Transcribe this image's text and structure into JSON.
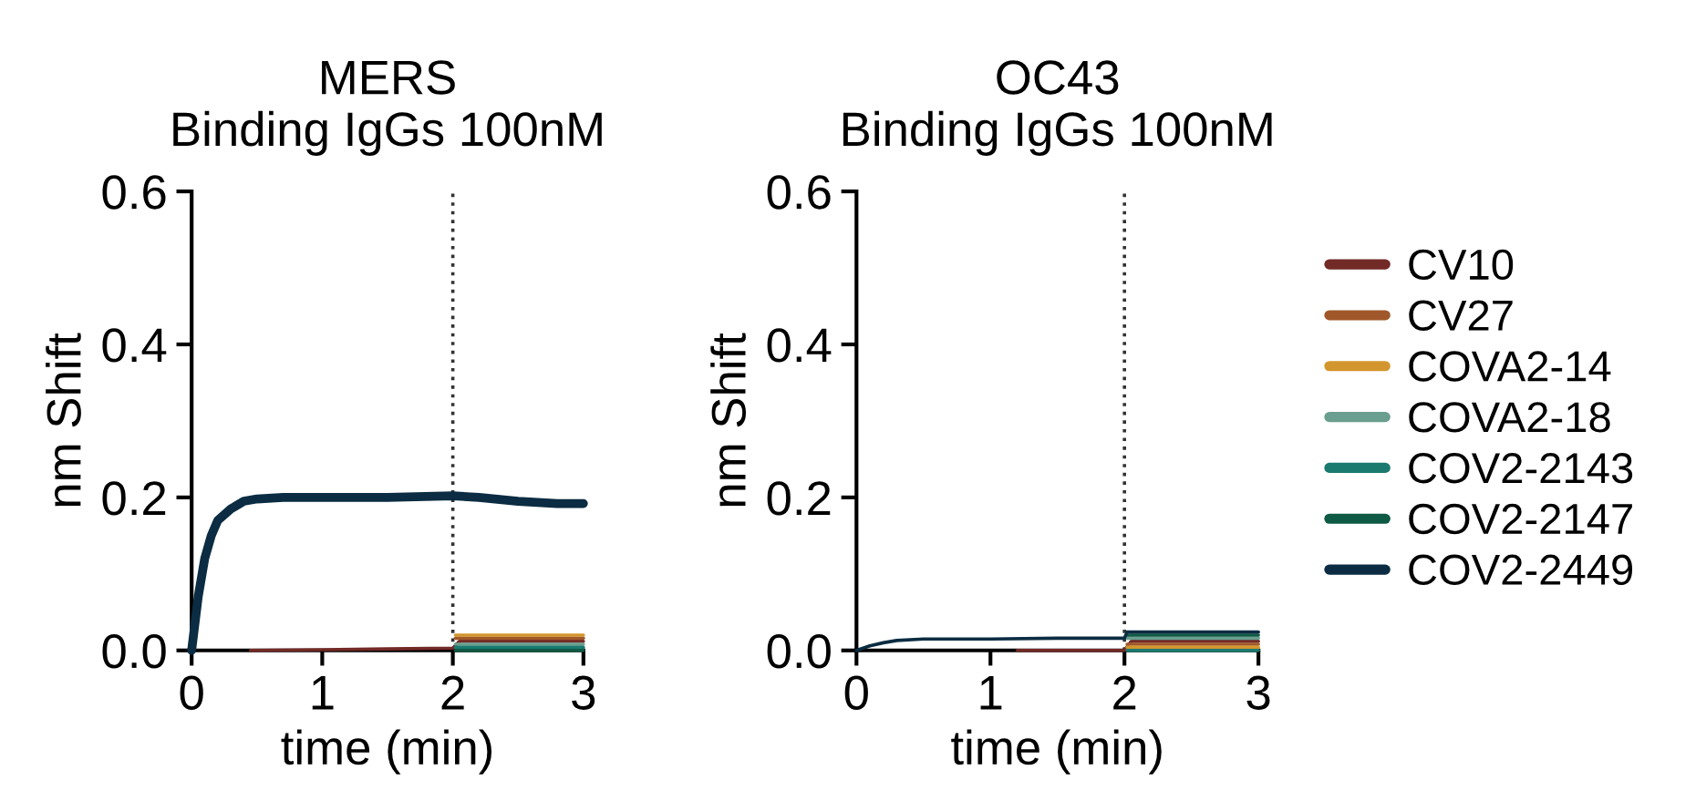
{
  "chart_data": [
    {
      "type": "line",
      "title": "MERS\nBinding IgGs 100nM",
      "xlabel": "time (min)",
      "ylabel": "nm Shift",
      "xlim": [
        0,
        3
      ],
      "ylim": [
        0,
        0.6
      ],
      "xticks": [
        0,
        1,
        2,
        3
      ],
      "yticks": [
        {
          "value": 0,
          "label": "0.0"
        },
        0.2,
        0.4,
        0.6
      ],
      "grid": false,
      "legend": false,
      "line_style": "solid",
      "marker": "none",
      "ref_lines": [
        {
          "axis": "x",
          "value": 2,
          "line_style": "dotted",
          "color": "#333333"
        }
      ],
      "series": [
        {
          "color": "#722a26",
          "x": [
            0.45,
            1,
            1.5,
            2,
            2.05,
            2.5,
            3
          ],
          "values": [
            0,
            0.001,
            0.002,
            0.003,
            0.012,
            0.012,
            0.012
          ]
        },
        {
          "color": "#a0582a",
          "x": [
            2.02,
            2.5,
            3
          ],
          "values": [
            0.016,
            0.016,
            0.016
          ]
        },
        {
          "color": "#d3962e",
          "x": [
            2.02,
            2.5,
            3
          ],
          "values": [
            0.02,
            0.02,
            0.02
          ]
        },
        {
          "color": "#6a9e8e",
          "x": [
            2.02,
            2.5,
            3
          ],
          "values": [
            0.008,
            0.008,
            0.008
          ]
        },
        {
          "color": "#1a7a70",
          "x": [
            2.02,
            2.5,
            3
          ],
          "values": [
            0.004,
            0.004,
            0.004
          ]
        },
        {
          "color": "#0f5a45",
          "x": [
            2.02,
            2.5,
            3
          ],
          "values": [
            0,
            0,
            0
          ]
        },
        {
          "color": "#0b2c42",
          "x": [
            0,
            0.05,
            0.1,
            0.15,
            0.2,
            0.3,
            0.4,
            0.5,
            0.7,
            1,
            1.5,
            2,
            2.2,
            2.5,
            2.8,
            3
          ],
          "values": [
            0,
            0.07,
            0.12,
            0.15,
            0.17,
            0.185,
            0.195,
            0.198,
            0.2,
            0.2,
            0.2,
            0.202,
            0.2,
            0.195,
            0.192,
            0.192
          ]
        }
      ]
    },
    {
      "type": "line",
      "title": "OC43\nBinding IgGs 100nM",
      "xlabel": "time (min)",
      "ylabel": "nm Shift",
      "xlim": [
        0,
        3
      ],
      "ylim": [
        0,
        0.6
      ],
      "xticks": [
        0,
        1,
        2,
        3
      ],
      "yticks": [
        {
          "value": 0,
          "label": "0.0"
        },
        0.2,
        0.4,
        0.6
      ],
      "grid": false,
      "legend": "right",
      "line_style": "solid",
      "marker": "none",
      "ref_lines": [
        {
          "axis": "x",
          "value": 2,
          "line_style": "dotted",
          "color": "#333333"
        }
      ],
      "series": [
        {
          "name": "CV10",
          "color": "#722a26",
          "x": [
            1.2,
            1.5,
            2,
            2.05,
            2.5,
            3
          ],
          "values": [
            0,
            0,
            0,
            0.012,
            0.012,
            0.012
          ]
        },
        {
          "name": "CV27",
          "color": "#a0582a",
          "x": [
            2.02,
            2.5,
            3
          ],
          "values": [
            0.008,
            0.008,
            0.008
          ]
        },
        {
          "name": "COVA2-14",
          "color": "#d3962e",
          "x": [
            2.02,
            2.5,
            3
          ],
          "values": [
            0.004,
            0.004,
            0.004
          ]
        },
        {
          "name": "COVA2-18",
          "color": "#6a9e8e",
          "x": [
            2.02,
            2.5,
            3
          ],
          "values": [
            0.016,
            0.016,
            0.016
          ]
        },
        {
          "name": "COV2-2143",
          "color": "#1a7a70",
          "x": [
            2.02,
            2.5,
            3
          ],
          "values": [
            0,
            0,
            0
          ]
        },
        {
          "name": "COV2-2147",
          "color": "#0f5a45",
          "x": [
            2.02,
            2.5,
            3
          ],
          "values": [
            0.02,
            0.02,
            0.02
          ]
        },
        {
          "name": "COV2-2449",
          "color": "#0b2c42",
          "x": [
            0,
            0.1,
            0.2,
            0.3,
            0.5,
            1,
            1.5,
            2,
            2.02,
            2.5,
            3
          ],
          "values": [
            0,
            0.006,
            0.01,
            0.013,
            0.015,
            0.015,
            0.016,
            0.016,
            0.024,
            0.024,
            0.024
          ]
        }
      ]
    }
  ]
}
